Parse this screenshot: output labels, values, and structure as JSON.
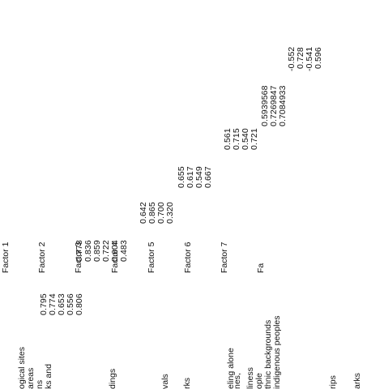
{
  "table": {
    "headers": [
      "Factor 1",
      "Factor 2",
      "Factor 3",
      "Factor 4",
      "Factor 5",
      "Factor 6",
      "Factor 7",
      "Fa"
    ],
    "row_labels": [
      "ogical sites",
      "areas",
      "ns",
      "ks and",
      "dings",
      "vals",
      "rks",
      "nes,",
      "eling alone",
      "liness",
      "ople",
      "thnic backgrounds",
      "indigenous peoples",
      "rips",
      "arks"
    ],
    "loadings": [
      {
        "factor": "Factor 1",
        "values": [
          "0.795",
          "0.774",
          "0.653",
          "0.556",
          "0.806"
        ]
      },
      {
        "factor": "Factor 2",
        "values": [
          "0.778",
          "0.836",
          "0.859",
          "0.722",
          "0.604",
          "0.483"
        ]
      },
      {
        "factor": "Factor 3",
        "values": [
          "0.642",
          "0.865",
          "0.700",
          "0.320"
        ]
      },
      {
        "factor": "Factor 4",
        "values": [
          "0.655",
          "0.617",
          "0.549",
          "0.667"
        ]
      },
      {
        "factor": "Factor 5",
        "values": [
          "0.561",
          "0.715",
          "0.540",
          "0.721"
        ]
      },
      {
        "factor": "Factor 6",
        "values": [
          "0.5939568",
          "0.7269847",
          "0.7084933"
        ]
      },
      {
        "factor": "Factor 7",
        "values": [
          "-0.552",
          "0.728",
          "-0.541",
          "0.596"
        ]
      }
    ]
  }
}
